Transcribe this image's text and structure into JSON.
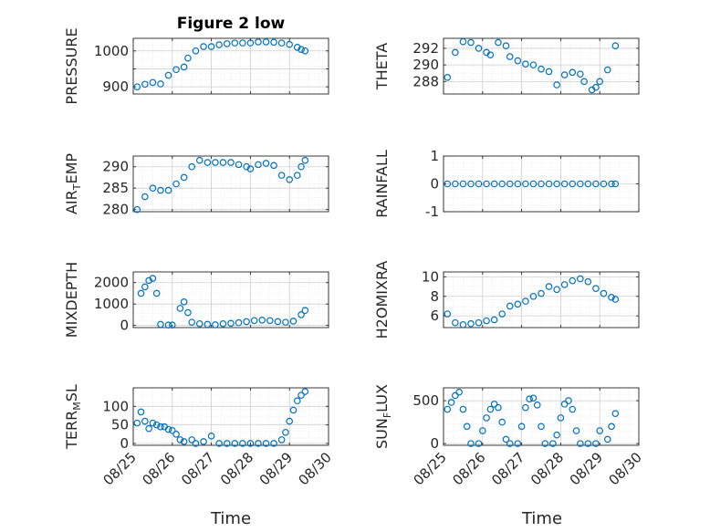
{
  "figure": {
    "title": "Figure 2 low",
    "xlabel": "Time"
  },
  "colors": {
    "marker": "#0072BD",
    "axis": "#262626",
    "grid": "#cfcfcf"
  },
  "x_ticks": [
    "08/25",
    "08/26",
    "08/27",
    "08/28",
    "08/29",
    "08/30"
  ],
  "chart_data": [
    {
      "type": "scatter",
      "id": "pressure",
      "ylabel": "PRESSURE",
      "ylim": [
        880,
        1035
      ],
      "yticks": [
        900,
        950,
        1000
      ],
      "ytick_labels": [
        "900",
        "",
        "1000"
      ],
      "xlim": [
        0,
        5
      ],
      "grid": true,
      "points": [
        [
          0.1,
          900
        ],
        [
          0.3,
          907
        ],
        [
          0.5,
          912
        ],
        [
          0.7,
          908
        ],
        [
          0.9,
          932
        ],
        [
          1.1,
          948
        ],
        [
          1.3,
          955
        ],
        [
          1.4,
          980
        ],
        [
          1.6,
          1000
        ],
        [
          1.8,
          1012
        ],
        [
          2.0,
          1012
        ],
        [
          2.2,
          1017
        ],
        [
          2.4,
          1020
        ],
        [
          2.6,
          1022
        ],
        [
          2.8,
          1022
        ],
        [
          3.0,
          1022
        ],
        [
          3.2,
          1025
        ],
        [
          3.4,
          1025
        ],
        [
          3.6,
          1024
        ],
        [
          3.8,
          1022
        ],
        [
          4.0,
          1018
        ],
        [
          4.2,
          1010
        ],
        [
          4.3,
          1004
        ],
        [
          4.4,
          1000
        ]
      ]
    },
    {
      "type": "scatter",
      "id": "theta",
      "ylabel": "THETA",
      "ylim": [
        286.5,
        293.2
      ],
      "yticks": [
        288,
        290,
        292
      ],
      "ytick_labels": [
        "288",
        "290",
        "292"
      ],
      "xlim": [
        0,
        5
      ],
      "grid": true,
      "points": [
        [
          0.1,
          288.5
        ],
        [
          0.3,
          291.5
        ],
        [
          0.5,
          292.8
        ],
        [
          0.7,
          292.7
        ],
        [
          0.9,
          292
        ],
        [
          1.1,
          291.5
        ],
        [
          1.2,
          291.2
        ],
        [
          1.4,
          292.7
        ],
        [
          1.6,
          292.3
        ],
        [
          1.7,
          291
        ],
        [
          1.9,
          290.5
        ],
        [
          2.1,
          290.1
        ],
        [
          2.3,
          290
        ],
        [
          2.5,
          289.5
        ],
        [
          2.7,
          289.2
        ],
        [
          2.9,
          287.6
        ],
        [
          3.1,
          288.8
        ],
        [
          3.3,
          289.1
        ],
        [
          3.5,
          288.9
        ],
        [
          3.6,
          288
        ],
        [
          3.8,
          287
        ],
        [
          3.9,
          287.3
        ],
        [
          4.0,
          288
        ],
        [
          4.2,
          289.4
        ],
        [
          4.4,
          292.3
        ]
      ]
    },
    {
      "type": "scatter",
      "id": "air-temp",
      "ylabel": "AIR_TEMP",
      "ylim": [
        279.5,
        292.5
      ],
      "yticks": [
        280,
        285,
        290
      ],
      "ytick_labels": [
        "280",
        "285",
        "290"
      ],
      "xlim": [
        0,
        5
      ],
      "grid": true,
      "points": [
        [
          0.1,
          280
        ],
        [
          0.3,
          283
        ],
        [
          0.5,
          285
        ],
        [
          0.7,
          284.5
        ],
        [
          0.9,
          284.5
        ],
        [
          1.1,
          286
        ],
        [
          1.3,
          287.5
        ],
        [
          1.5,
          290
        ],
        [
          1.7,
          291.5
        ],
        [
          1.9,
          291
        ],
        [
          2.1,
          291
        ],
        [
          2.3,
          291
        ],
        [
          2.5,
          291
        ],
        [
          2.7,
          290.5
        ],
        [
          2.9,
          290
        ],
        [
          3.0,
          289.5
        ],
        [
          3.2,
          290.5
        ],
        [
          3.4,
          290.8
        ],
        [
          3.6,
          290.3
        ],
        [
          3.8,
          288
        ],
        [
          4.0,
          287
        ],
        [
          4.2,
          288
        ],
        [
          4.3,
          290
        ],
        [
          4.4,
          291.5
        ]
      ]
    },
    {
      "type": "scatter",
      "id": "rainfall",
      "ylabel": "RAINFALL",
      "ylim": [
        -1,
        1
      ],
      "yticks": [
        -1,
        0,
        1
      ],
      "ytick_labels": [
        "-1",
        "0",
        "1"
      ],
      "xlim": [
        0,
        5
      ],
      "grid": true,
      "points": [
        [
          0.1,
          0
        ],
        [
          0.3,
          0
        ],
        [
          0.5,
          0
        ],
        [
          0.7,
          0
        ],
        [
          0.9,
          0
        ],
        [
          1.1,
          0
        ],
        [
          1.3,
          0
        ],
        [
          1.5,
          0
        ],
        [
          1.7,
          0
        ],
        [
          1.9,
          0
        ],
        [
          2.1,
          0
        ],
        [
          2.3,
          0
        ],
        [
          2.5,
          0
        ],
        [
          2.7,
          0
        ],
        [
          2.9,
          0
        ],
        [
          3.1,
          0
        ],
        [
          3.3,
          0
        ],
        [
          3.5,
          0
        ],
        [
          3.7,
          0
        ],
        [
          3.9,
          0
        ],
        [
          4.1,
          0
        ],
        [
          4.3,
          0
        ],
        [
          4.4,
          0
        ]
      ]
    },
    {
      "type": "scatter",
      "id": "mixdepth",
      "ylabel": "MIXDEPTH",
      "ylim": [
        -100,
        2500
      ],
      "yticks": [
        0,
        1000,
        2000
      ],
      "ytick_labels": [
        "0",
        "1000",
        "2000"
      ],
      "xlim": [
        0,
        5
      ],
      "grid": true,
      "points": [
        [
          0.2,
          1500
        ],
        [
          0.3,
          1800
        ],
        [
          0.4,
          2100
        ],
        [
          0.5,
          2200
        ],
        [
          0.6,
          1500
        ],
        [
          0.7,
          50
        ],
        [
          0.9,
          20
        ],
        [
          1.0,
          20
        ],
        [
          1.2,
          800
        ],
        [
          1.3,
          1100
        ],
        [
          1.4,
          600
        ],
        [
          1.5,
          150
        ],
        [
          1.7,
          80
        ],
        [
          1.9,
          50
        ],
        [
          2.1,
          30
        ],
        [
          2.3,
          80
        ],
        [
          2.5,
          100
        ],
        [
          2.7,
          130
        ],
        [
          2.9,
          180
        ],
        [
          3.1,
          230
        ],
        [
          3.3,
          250
        ],
        [
          3.5,
          230
        ],
        [
          3.7,
          180
        ],
        [
          3.9,
          150
        ],
        [
          4.1,
          200
        ],
        [
          4.3,
          500
        ],
        [
          4.4,
          700
        ]
      ]
    },
    {
      "type": "scatter",
      "id": "h2omixra",
      "ylabel": "H2OMIXRA",
      "ylim": [
        4.8,
        10.5
      ],
      "yticks": [
        6,
        8,
        10
      ],
      "ytick_labels": [
        "6",
        "8",
        "10"
      ],
      "xlim": [
        0,
        5
      ],
      "grid": true,
      "points": [
        [
          0.1,
          6.2
        ],
        [
          0.3,
          5.3
        ],
        [
          0.5,
          5.1
        ],
        [
          0.7,
          5.2
        ],
        [
          0.9,
          5.3
        ],
        [
          1.1,
          5.5
        ],
        [
          1.3,
          5.6
        ],
        [
          1.5,
          6.2
        ],
        [
          1.7,
          7
        ],
        [
          1.9,
          7.2
        ],
        [
          2.1,
          7.5
        ],
        [
          2.3,
          8
        ],
        [
          2.5,
          8.3
        ],
        [
          2.7,
          9
        ],
        [
          2.9,
          8.7
        ],
        [
          3.1,
          9.2
        ],
        [
          3.3,
          9.6
        ],
        [
          3.5,
          9.8
        ],
        [
          3.7,
          9.5
        ],
        [
          3.9,
          8.8
        ],
        [
          4.1,
          8.3
        ],
        [
          4.3,
          7.9
        ],
        [
          4.4,
          7.7
        ]
      ]
    },
    {
      "type": "scatter",
      "id": "terr-msl",
      "ylabel": "TERR_MSL",
      "ylim": [
        -5,
        150
      ],
      "yticks": [
        0,
        50,
        100
      ],
      "ytick_labels": [
        "0",
        "50",
        "100"
      ],
      "xlim": [
        0,
        5
      ],
      "grid": true,
      "points": [
        [
          0.1,
          55
        ],
        [
          0.2,
          85
        ],
        [
          0.3,
          60
        ],
        [
          0.4,
          40
        ],
        [
          0.5,
          55
        ],
        [
          0.6,
          50
        ],
        [
          0.7,
          45
        ],
        [
          0.8,
          45
        ],
        [
          0.9,
          38
        ],
        [
          1.0,
          35
        ],
        [
          1.1,
          25
        ],
        [
          1.2,
          10
        ],
        [
          1.3,
          5
        ],
        [
          1.5,
          10
        ],
        [
          1.6,
          0
        ],
        [
          1.8,
          5
        ],
        [
          2.0,
          20
        ],
        [
          2.2,
          0
        ],
        [
          2.4,
          0
        ],
        [
          2.6,
          0
        ],
        [
          2.8,
          0
        ],
        [
          3.0,
          0
        ],
        [
          3.2,
          0
        ],
        [
          3.4,
          0
        ],
        [
          3.6,
          0
        ],
        [
          3.8,
          10
        ],
        [
          3.9,
          30
        ],
        [
          4.0,
          60
        ],
        [
          4.1,
          90
        ],
        [
          4.2,
          115
        ],
        [
          4.3,
          130
        ],
        [
          4.4,
          140
        ]
      ]
    },
    {
      "type": "scatter",
      "id": "sun-flux",
      "ylabel": "SUN_FLUX",
      "ylim": [
        -20,
        650
      ],
      "yticks": [
        0,
        500
      ],
      "ytick_labels": [
        "0",
        "500"
      ],
      "xlim": [
        0,
        5
      ],
      "grid": true,
      "points": [
        [
          0.1,
          400
        ],
        [
          0.2,
          480
        ],
        [
          0.3,
          560
        ],
        [
          0.4,
          600
        ],
        [
          0.5,
          400
        ],
        [
          0.6,
          200
        ],
        [
          0.7,
          0
        ],
        [
          0.9,
          0
        ],
        [
          1.0,
          150
        ],
        [
          1.1,
          300
        ],
        [
          1.2,
          400
        ],
        [
          1.3,
          460
        ],
        [
          1.4,
          420
        ],
        [
          1.5,
          250
        ],
        [
          1.6,
          50
        ],
        [
          1.7,
          0
        ],
        [
          1.9,
          0
        ],
        [
          2.0,
          200
        ],
        [
          2.1,
          420
        ],
        [
          2.2,
          520
        ],
        [
          2.3,
          530
        ],
        [
          2.4,
          450
        ],
        [
          2.5,
          200
        ],
        [
          2.6,
          0
        ],
        [
          2.8,
          0
        ],
        [
          2.9,
          100
        ],
        [
          3.0,
          300
        ],
        [
          3.1,
          460
        ],
        [
          3.2,
          500
        ],
        [
          3.3,
          400
        ],
        [
          3.4,
          150
        ],
        [
          3.5,
          0
        ],
        [
          3.7,
          0
        ],
        [
          3.9,
          0
        ],
        [
          4.0,
          150
        ],
        [
          4.2,
          50
        ],
        [
          4.3,
          200
        ],
        [
          4.4,
          350
        ]
      ]
    }
  ]
}
